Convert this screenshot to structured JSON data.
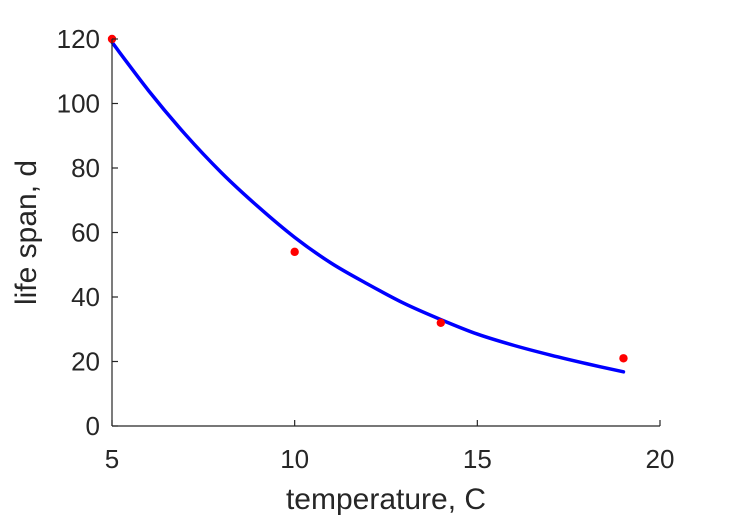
{
  "chart_data": {
    "type": "scatter",
    "xlabel": "temperature, C",
    "ylabel": "life span, d",
    "xlim": [
      5,
      20
    ],
    "ylim": [
      0,
      120
    ],
    "x_ticks": [
      5,
      10,
      15,
      20
    ],
    "y_ticks": [
      0,
      20,
      40,
      60,
      80,
      100,
      120
    ],
    "x_tick_labels": [
      "5",
      "10",
      "15",
      "20"
    ],
    "y_tick_labels": [
      "0",
      "20",
      "40",
      "60",
      "80",
      "100",
      "120"
    ],
    "grid": false,
    "series": [
      {
        "kind": "points",
        "color": "#ff0000",
        "x": [
          5,
          10,
          14,
          19
        ],
        "y": [
          120,
          54,
          32,
          21
        ]
      },
      {
        "kind": "fit-line",
        "color": "#0000ff",
        "x": [
          5,
          6,
          7,
          8,
          9,
          10,
          11,
          12,
          13,
          14,
          15,
          16,
          17,
          18,
          19
        ],
        "y": [
          119,
          104,
          90.5,
          78.5,
          68,
          58.5,
          50.5,
          44,
          38,
          33,
          28.5,
          25,
          22,
          19.3,
          16.8
        ]
      }
    ]
  }
}
